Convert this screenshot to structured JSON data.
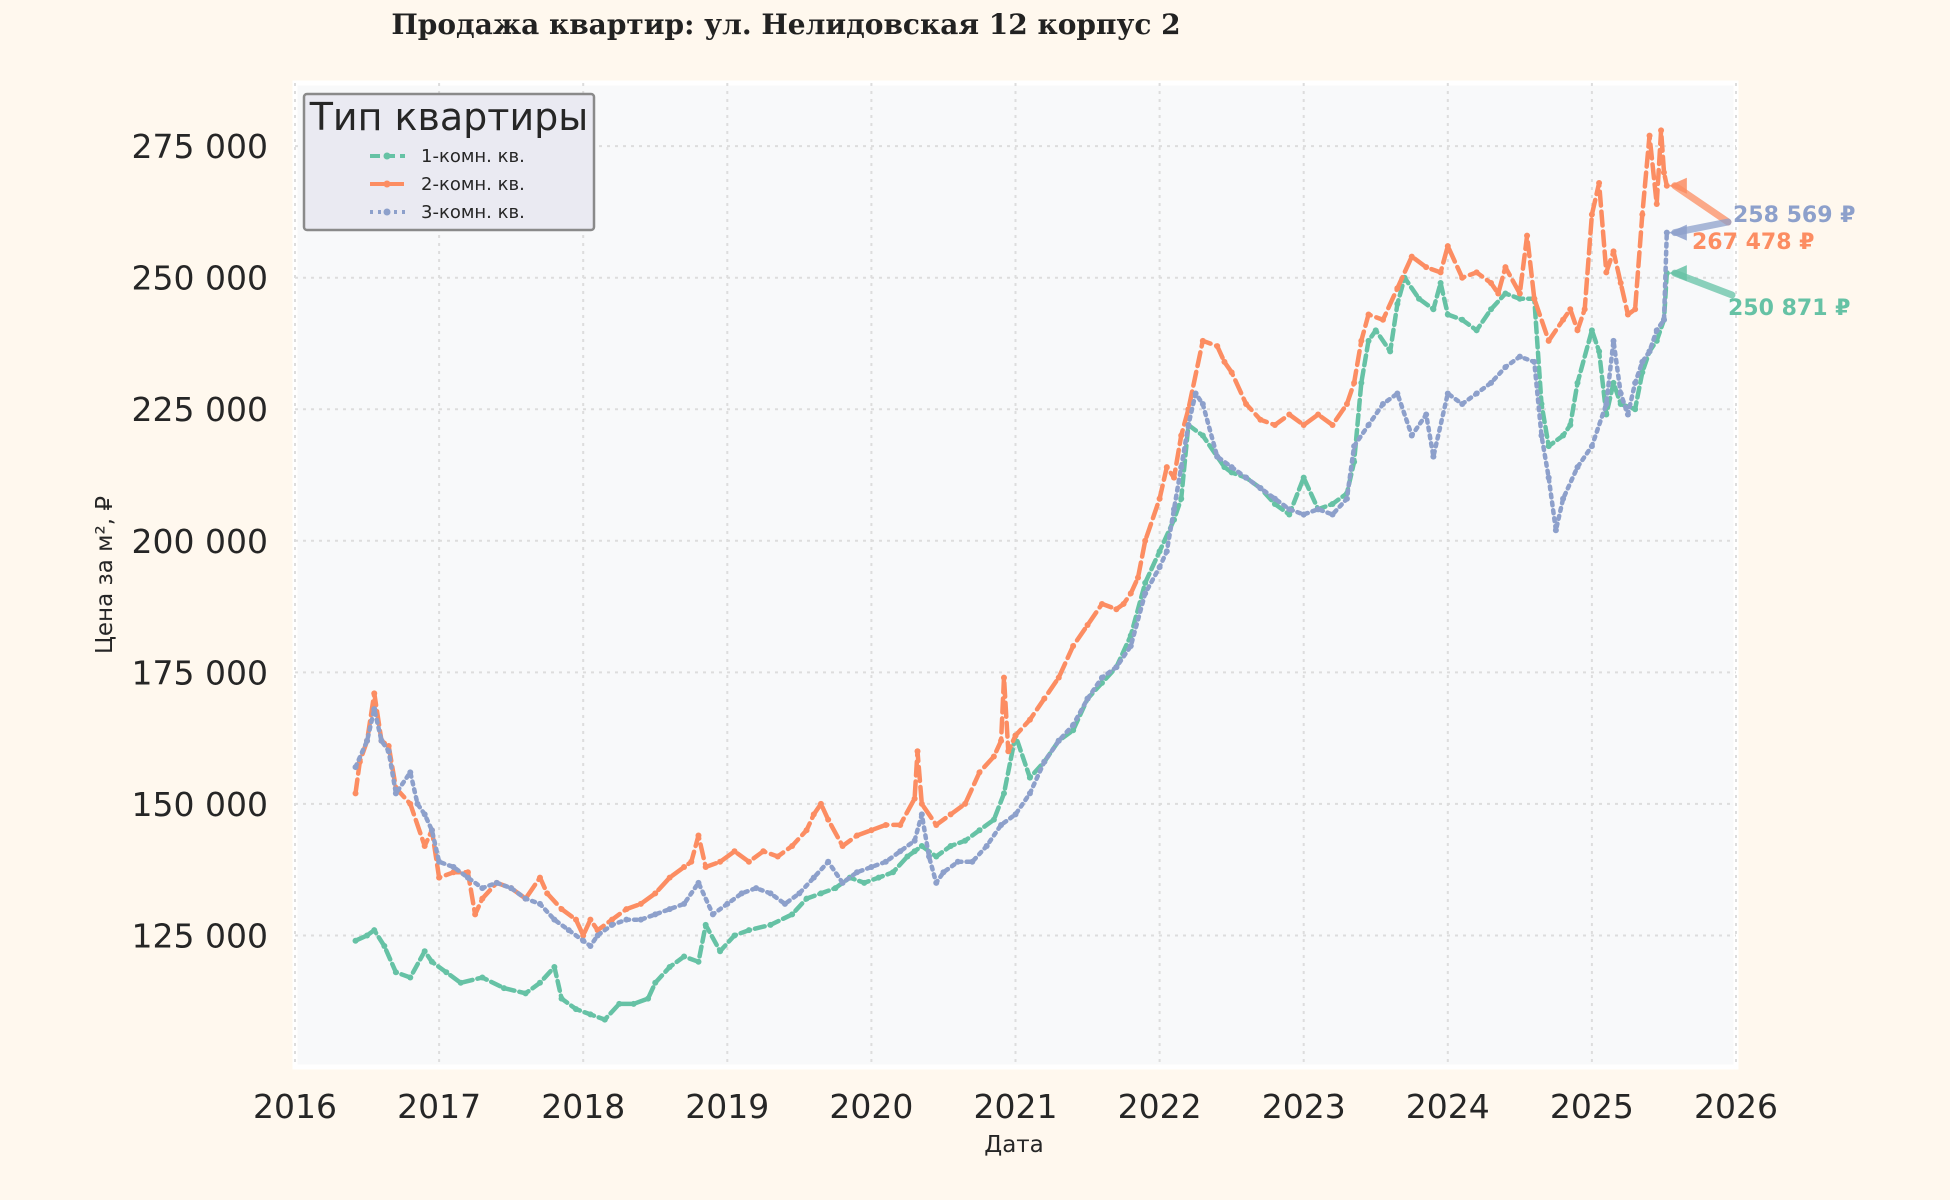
{
  "chart_data": {
    "type": "line",
    "title": "Продажа квартир: ул. Нелидовская 12 корпус 2",
    "xlabel": "Дата",
    "ylabel": "Цена за м², ₽",
    "xlim": [
      2016.0,
      2026.0
    ],
    "ylim": [
      100000,
      287000
    ],
    "x_ticks": [
      "2016",
      "2017",
      "2018",
      "2019",
      "2020",
      "2021",
      "2022",
      "2023",
      "2024",
      "2025",
      "2026"
    ],
    "y_ticks": [
      "125 000",
      "150 000",
      "175 000",
      "200 000",
      "225 000",
      "250 000",
      "275 000"
    ],
    "y_tick_values": [
      125000,
      150000,
      175000,
      200000,
      225000,
      250000,
      275000
    ],
    "grid": true,
    "legend": {
      "title": "Тип квартиры",
      "position": "top-left"
    },
    "series": [
      {
        "name": "1-комн. кв.",
        "color": "#66c2a5",
        "dash": "10,5",
        "x": [
          2016.42,
          2016.5,
          2016.55,
          2016.62,
          2016.7,
          2016.8,
          2016.9,
          2016.95,
          2017.05,
          2017.15,
          2017.3,
          2017.45,
          2017.6,
          2017.7,
          2017.8,
          2017.85,
          2017.95,
          2018.05,
          2018.15,
          2018.25,
          2018.35,
          2018.45,
          2018.5,
          2018.6,
          2018.7,
          2018.8,
          2018.85,
          2018.95,
          2019.05,
          2019.15,
          2019.3,
          2019.45,
          2019.55,
          2019.65,
          2019.75,
          2019.85,
          2019.95,
          2020.05,
          2020.15,
          2020.25,
          2020.3,
          2020.35,
          2020.45,
          2020.55,
          2020.65,
          2020.75,
          2020.85,
          2020.92,
          2021.0,
          2021.1,
          2021.2,
          2021.3,
          2021.4,
          2021.5,
          2021.6,
          2021.7,
          2021.8,
          2021.9,
          2022.0,
          2022.1,
          2022.15,
          2022.2,
          2022.3,
          2022.4,
          2022.45,
          2022.5,
          2022.6,
          2022.7,
          2022.8,
          2022.9,
          2023.0,
          2023.1,
          2023.2,
          2023.3,
          2023.35,
          2023.4,
          2023.45,
          2023.5,
          2023.6,
          2023.65,
          2023.7,
          2023.8,
          2023.9,
          2023.95,
          2024.0,
          2024.1,
          2024.2,
          2024.3,
          2024.4,
          2024.5,
          2024.6,
          2024.65,
          2024.7,
          2024.8,
          2024.85,
          2024.9,
          2025.0,
          2025.05,
          2025.1,
          2025.15,
          2025.2,
          2025.3,
          2025.35,
          2025.4,
          2025.45,
          2025.5,
          2025.52
        ],
        "y": [
          124000,
          125000,
          126000,
          123000,
          118000,
          117000,
          122000,
          120000,
          118000,
          116000,
          117000,
          115000,
          114000,
          116000,
          119000,
          113000,
          111000,
          110000,
          109000,
          112000,
          112000,
          113000,
          116000,
          119000,
          121000,
          120000,
          127000,
          122000,
          125000,
          126000,
          127000,
          129000,
          132000,
          133000,
          134000,
          136000,
          135000,
          136000,
          137000,
          140000,
          141000,
          142000,
          140000,
          142000,
          143000,
          145000,
          147000,
          152000,
          163000,
          155000,
          158000,
          162000,
          164000,
          170000,
          173000,
          176000,
          182000,
          192000,
          198000,
          204000,
          208000,
          222000,
          220000,
          216000,
          214000,
          213000,
          212000,
          210000,
          207000,
          205000,
          212000,
          206000,
          207000,
          209000,
          215000,
          230000,
          238000,
          240000,
          236000,
          245000,
          250000,
          246000,
          244000,
          249000,
          243000,
          242000,
          240000,
          244000,
          247000,
          246000,
          246000,
          226000,
          218000,
          220000,
          222000,
          230000,
          240000,
          236000,
          224000,
          230000,
          226000,
          225000,
          232000,
          236000,
          238000,
          242000,
          250871
        ]
      },
      {
        "name": "2-комн. кв.",
        "color": "#fc8d62",
        "dash": "14,6",
        "x": [
          2016.42,
          2016.45,
          2016.5,
          2016.55,
          2016.6,
          2016.65,
          2016.7,
          2016.8,
          2016.9,
          2016.95,
          2017.0,
          2017.1,
          2017.2,
          2017.25,
          2017.3,
          2017.4,
          2017.5,
          2017.6,
          2017.7,
          2017.75,
          2017.85,
          2017.95,
          2018.0,
          2018.05,
          2018.1,
          2018.2,
          2018.3,
          2018.4,
          2018.5,
          2018.6,
          2018.7,
          2018.75,
          2018.8,
          2018.85,
          2018.95,
          2019.05,
          2019.15,
          2019.25,
          2019.35,
          2019.45,
          2019.55,
          2019.6,
          2019.65,
          2019.7,
          2019.8,
          2019.9,
          2020.0,
          2020.1,
          2020.2,
          2020.3,
          2020.32,
          2020.35,
          2020.45,
          2020.55,
          2020.65,
          2020.75,
          2020.85,
          2020.9,
          2020.92,
          2020.95,
          2021.0,
          2021.1,
          2021.2,
          2021.3,
          2021.4,
          2021.5,
          2021.6,
          2021.7,
          2021.75,
          2021.8,
          2021.85,
          2021.9,
          2022.0,
          2022.05,
          2022.1,
          2022.15,
          2022.2,
          2022.3,
          2022.4,
          2022.45,
          2022.5,
          2022.6,
          2022.7,
          2022.8,
          2022.9,
          2023.0,
          2023.1,
          2023.2,
          2023.3,
          2023.35,
          2023.4,
          2023.45,
          2023.55,
          2023.65,
          2023.75,
          2023.85,
          2023.95,
          2024.0,
          2024.1,
          2024.2,
          2024.3,
          2024.35,
          2024.4,
          2024.5,
          2024.55,
          2024.6,
          2024.7,
          2024.8,
          2024.85,
          2024.9,
          2024.95,
          2025.0,
          2025.05,
          2025.1,
          2025.15,
          2025.2,
          2025.25,
          2025.3,
          2025.35,
          2025.4,
          2025.45,
          2025.48,
          2025.5,
          2025.52
        ],
        "y": [
          152000,
          158000,
          162000,
          171000,
          162000,
          161000,
          153000,
          150000,
          142000,
          145000,
          136000,
          137000,
          137000,
          129000,
          132000,
          135000,
          134000,
          132000,
          136000,
          133000,
          130000,
          128000,
          125000,
          128000,
          126000,
          128000,
          130000,
          131000,
          133000,
          136000,
          138000,
          139000,
          144000,
          138000,
          139000,
          141000,
          139000,
          141000,
          140000,
          142000,
          145000,
          148000,
          150000,
          147000,
          142000,
          144000,
          145000,
          146000,
          146000,
          151000,
          160000,
          150000,
          146000,
          148000,
          150000,
          156000,
          159000,
          162000,
          174000,
          160000,
          163000,
          166000,
          170000,
          174000,
          180000,
          184000,
          188000,
          187000,
          188000,
          190000,
          193000,
          200000,
          208000,
          214000,
          212000,
          220000,
          225000,
          238000,
          237000,
          234000,
          232000,
          226000,
          223000,
          222000,
          224000,
          222000,
          224000,
          222000,
          226000,
          230000,
          238000,
          243000,
          242000,
          248000,
          254000,
          252000,
          251000,
          256000,
          250000,
          251000,
          249000,
          247000,
          252000,
          247000,
          258000,
          246000,
          238000,
          242000,
          244000,
          240000,
          244000,
          262000,
          268000,
          251000,
          255000,
          249000,
          243000,
          244000,
          262000,
          277000,
          264000,
          278000,
          270000,
          267478
        ]
      },
      {
        "name": "3-комн. кв.",
        "color": "#8da0cb",
        "dash": "3,5",
        "x": [
          2016.42,
          2016.5,
          2016.55,
          2016.6,
          2016.65,
          2016.7,
          2016.8,
          2016.85,
          2016.9,
          2016.95,
          2017.0,
          2017.1,
          2017.2,
          2017.3,
          2017.4,
          2017.5,
          2017.6,
          2017.7,
          2017.8,
          2017.9,
          2018.0,
          2018.05,
          2018.1,
          2018.2,
          2018.3,
          2018.4,
          2018.5,
          2018.6,
          2018.7,
          2018.8,
          2018.9,
          2019.0,
          2019.1,
          2019.2,
          2019.3,
          2019.4,
          2019.5,
          2019.6,
          2019.7,
          2019.8,
          2019.9,
          2020.0,
          2020.1,
          2020.2,
          2020.3,
          2020.35,
          2020.4,
          2020.45,
          2020.5,
          2020.6,
          2020.7,
          2020.8,
          2020.9,
          2021.0,
          2021.1,
          2021.2,
          2021.3,
          2021.4,
          2021.5,
          2021.6,
          2021.7,
          2021.8,
          2021.9,
          2022.0,
          2022.05,
          2022.1,
          2022.15,
          2022.2,
          2022.25,
          2022.3,
          2022.4,
          2022.5,
          2022.6,
          2022.7,
          2022.8,
          2022.9,
          2023.0,
          2023.1,
          2023.2,
          2023.3,
          2023.35,
          2023.45,
          2023.55,
          2023.65,
          2023.75,
          2023.85,
          2023.9,
          2024.0,
          2024.1,
          2024.2,
          2024.3,
          2024.4,
          2024.5,
          2024.6,
          2024.65,
          2024.7,
          2024.75,
          2024.8,
          2024.9,
          2025.0,
          2025.1,
          2025.15,
          2025.2,
          2025.25,
          2025.3,
          2025.35,
          2025.4,
          2025.45,
          2025.5,
          2025.52
        ],
        "y": [
          157000,
          162000,
          168000,
          162000,
          160000,
          152000,
          156000,
          150000,
          148000,
          145000,
          139000,
          138000,
          136000,
          134000,
          135000,
          134000,
          132000,
          131000,
          128000,
          126000,
          124000,
          123000,
          125000,
          127000,
          128000,
          128000,
          129000,
          130000,
          131000,
          135000,
          129000,
          131000,
          133000,
          134000,
          133000,
          131000,
          133000,
          136000,
          139000,
          135000,
          137000,
          138000,
          139000,
          141000,
          143000,
          148000,
          140000,
          135000,
          137000,
          139000,
          139000,
          142000,
          146000,
          148000,
          152000,
          158000,
          162000,
          165000,
          170000,
          174000,
          176000,
          180000,
          190000,
          195000,
          198000,
          206000,
          214000,
          222000,
          228000,
          226000,
          216000,
          214000,
          212000,
          210000,
          208000,
          206000,
          205000,
          206000,
          205000,
          208000,
          218000,
          222000,
          226000,
          228000,
          220000,
          224000,
          216000,
          228000,
          226000,
          228000,
          230000,
          233000,
          235000,
          234000,
          220000,
          212000,
          202000,
          208000,
          214000,
          218000,
          226000,
          238000,
          228000,
          224000,
          230000,
          234000,
          236000,
          240000,
          242000,
          258569
        ]
      }
    ],
    "annotations": [
      {
        "series": "2-комн. кв.",
        "text": "267 478 ₽"
      },
      {
        "series": "3-комн. кв.",
        "text": "258 569 ₽"
      },
      {
        "series": "1-комн. кв.",
        "text": "250 871 ₽"
      }
    ]
  }
}
